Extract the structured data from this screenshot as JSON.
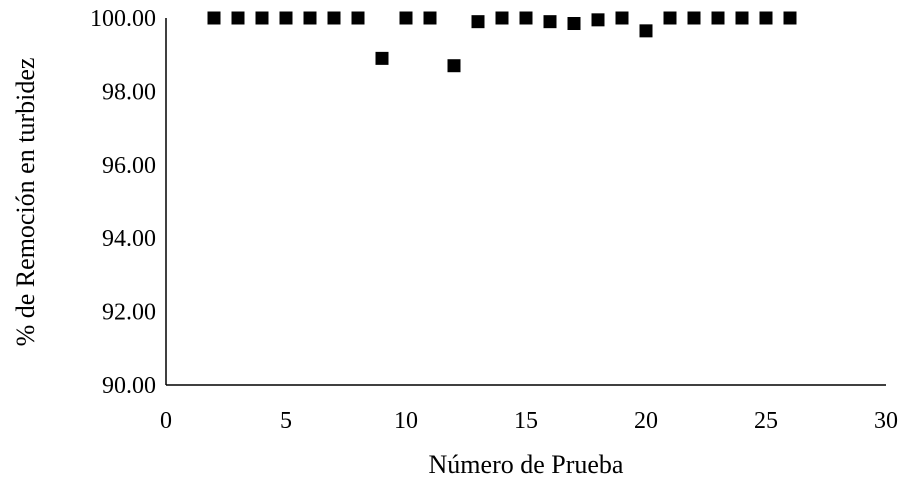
{
  "chart_data": {
    "type": "scatter",
    "title": "",
    "xlabel": "Número de Prueba",
    "ylabel": "% de Remoción en turbidez",
    "xlim": [
      0,
      30
    ],
    "ylim": [
      90,
      100
    ],
    "xticks": [
      0,
      5,
      10,
      15,
      20,
      25,
      30
    ],
    "yticks": [
      90,
      92,
      94,
      96,
      98,
      100
    ],
    "ytick_labels": [
      "90.00",
      "92.00",
      "94.00",
      "96.00",
      "98.00",
      "100.00"
    ],
    "xtick_labels": [
      "0",
      "5",
      "10",
      "15",
      "20",
      "25",
      "30"
    ],
    "grid": false,
    "legend": "none",
    "marker": "square",
    "marker_color": "#000000",
    "series": [
      {
        "x": [
          2,
          3,
          4,
          5,
          6,
          7,
          8,
          9,
          10,
          11,
          12,
          13,
          14,
          15,
          16,
          17,
          18,
          19,
          20,
          21,
          22,
          23,
          24,
          25,
          26
        ],
        "y": [
          100.0,
          100.0,
          100.0,
          100.0,
          100.0,
          100.0,
          100.0,
          98.9,
          100.0,
          100.0,
          98.7,
          99.9,
          100.0,
          100.0,
          99.9,
          99.85,
          99.95,
          100.0,
          99.65,
          100.0,
          100.0,
          100.0,
          100.0,
          100.0,
          100.0
        ]
      }
    ]
  }
}
